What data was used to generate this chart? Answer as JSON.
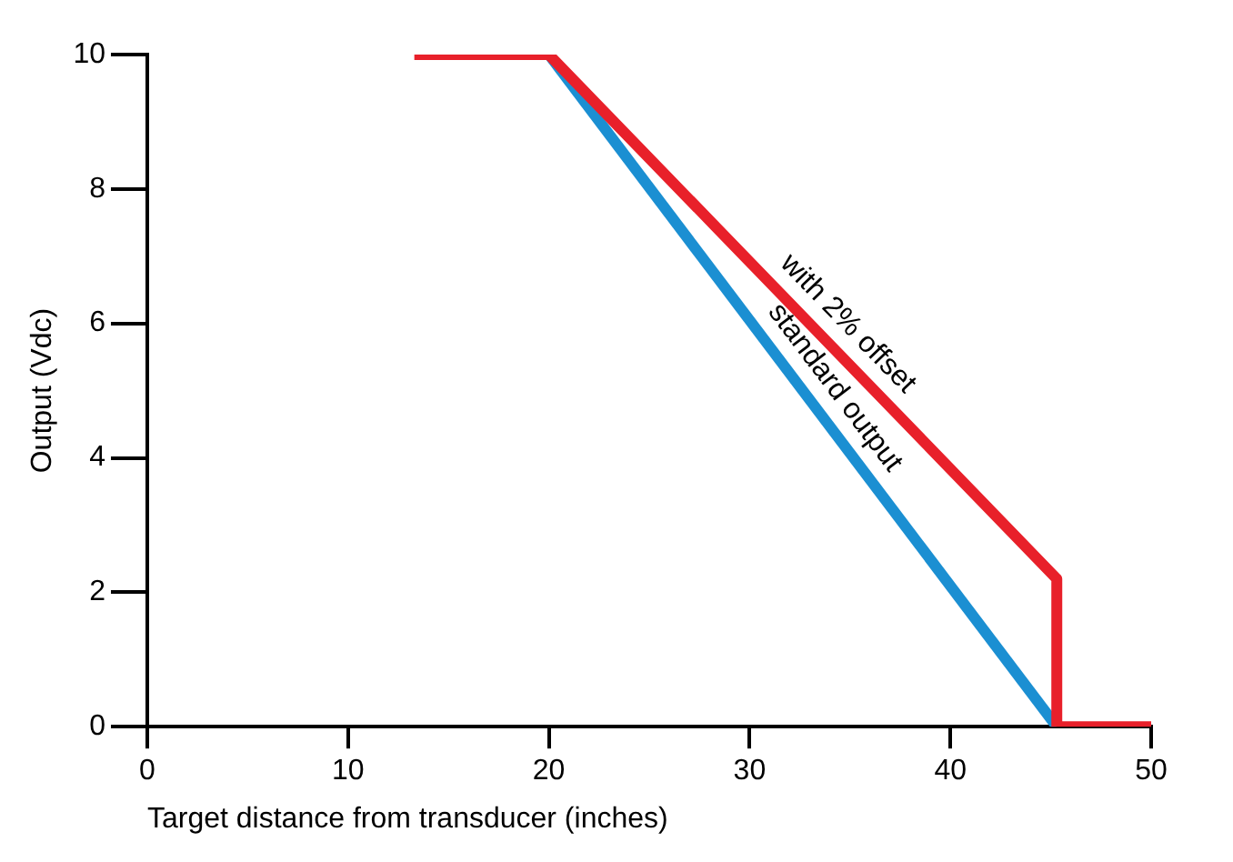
{
  "chart_data": {
    "type": "line",
    "xlabel": "Target distance from transducer (inches)",
    "ylabel": "Output (Vdc)",
    "xlim": [
      0,
      50
    ],
    "xticks": [
      0,
      10,
      20,
      30,
      40,
      50
    ],
    "ylim": [
      0,
      10
    ],
    "yticks": [
      0,
      2,
      4,
      6,
      8,
      10
    ],
    "grid": false,
    "legend": false,
    "marker": "none",
    "line_style": "solid",
    "series": [
      {
        "name": "standard output",
        "color": "#1b8fd2",
        "x": [
          20,
          45.3
        ],
        "values": [
          10,
          0
        ]
      },
      {
        "name": "with 2% offset",
        "color": "#e8202a",
        "x": [
          13.3,
          20,
          45.3,
          45.3,
          50
        ],
        "values": [
          10,
          10,
          2.2,
          0,
          0
        ]
      }
    ]
  }
}
